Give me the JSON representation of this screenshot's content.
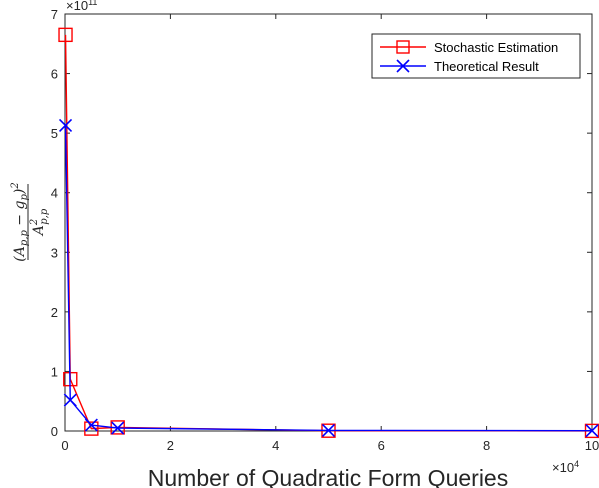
{
  "chart_data": {
    "type": "line",
    "x": [
      100,
      1000,
      5000,
      10000,
      50000,
      100000
    ],
    "series": [
      {
        "name": "Stochastic Estimation",
        "color": "#ff0000",
        "marker": "square",
        "values": [
          665000000000.0,
          87000000000.0,
          4000000000.0,
          6000000000.0,
          500000000.0,
          200000000.0
        ]
      },
      {
        "name": "Theoretical Result",
        "color": "#0000ff",
        "marker": "x",
        "values": [
          513000000000.0,
          52000000000.0,
          10000000000.0,
          5000000000.0,
          1000000000.0,
          500000000.0
        ]
      }
    ],
    "xlim": [
      0,
      100000
    ],
    "ylim": [
      0,
      700000000000.0
    ],
    "x_tick_labels": [
      "0",
      "2",
      "4",
      "6",
      "8",
      "10"
    ],
    "y_tick_labels": [
      "0",
      "1",
      "2",
      "3",
      "4",
      "5",
      "6",
      "7"
    ],
    "x_multiplier": {
      "base": "×10",
      "exp": "4"
    },
    "y_multiplier": {
      "base": "×10",
      "exp": "11"
    },
    "xlabel": "Number of Quadratic Form Queries",
    "ylabel": {
      "numerator": "(A",
      "num_sub": "p,p",
      "num_mid": " − g",
      "num_sub2": "p",
      "num_close": ")",
      "num_sup": "2",
      "denominator": "A",
      "den_sub": "p,p",
      "den_sup": "2"
    },
    "grid": false,
    "legend_position": "top-right"
  }
}
